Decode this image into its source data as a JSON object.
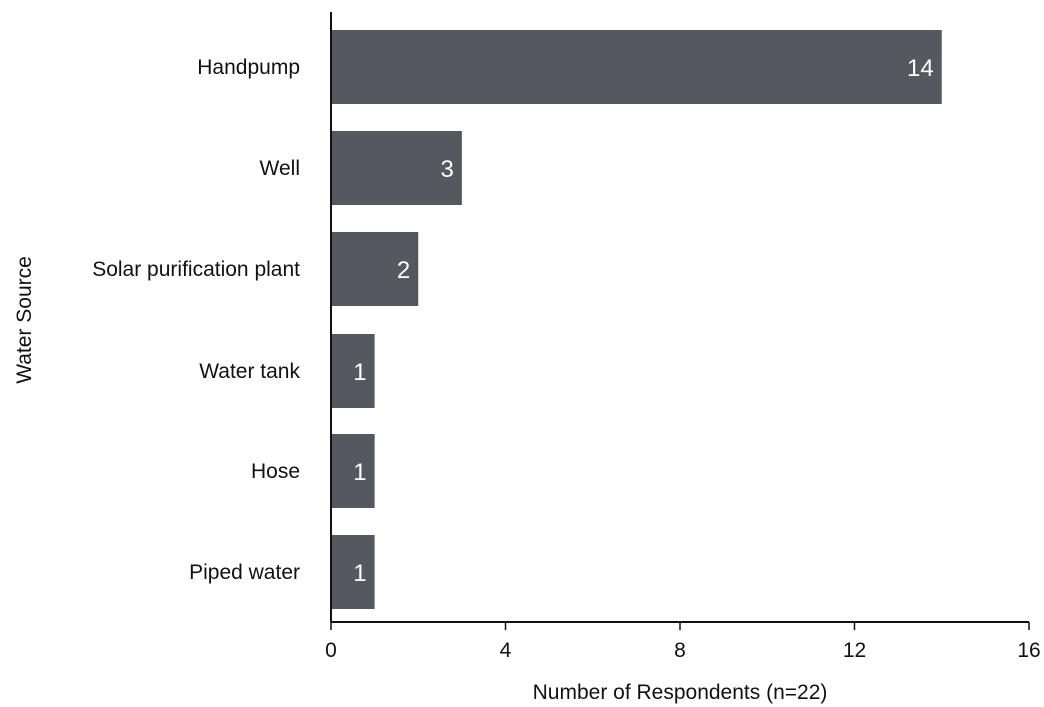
{
  "chart_data": {
    "type": "bar",
    "orientation": "horizontal",
    "title": "",
    "xlabel": "Number of Respondents (n=22)",
    "ylabel": "Water Source",
    "categories": [
      "Handpump",
      "Well",
      "Solar purification plant",
      "Water tank",
      "Hose",
      "Piped water"
    ],
    "values": [
      14,
      3,
      2,
      1,
      1,
      1
    ],
    "data_labels": [
      "14",
      "3",
      "2",
      "1",
      "1",
      "1"
    ],
    "xlim": [
      0,
      16
    ],
    "xticks": [
      0,
      4,
      8,
      12,
      16
    ],
    "xtick_labels": [
      "0",
      "4",
      "8",
      "12",
      "16"
    ],
    "grid": false,
    "legend": "none",
    "colors": {
      "bar": "#55585e",
      "bar_label": "#ffffff",
      "axis": "#111111",
      "text": "#111111"
    }
  }
}
